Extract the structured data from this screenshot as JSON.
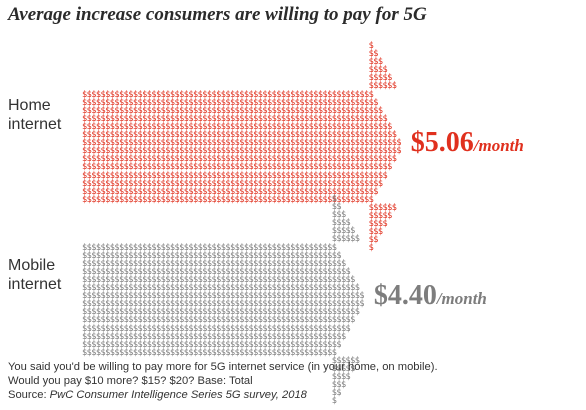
{
  "chart_data": {
    "type": "bar",
    "title": "Average increase consumers are willing to pay for 5G",
    "categories": [
      "Home internet",
      "Mobile internet"
    ],
    "category_lines": [
      [
        "Home",
        "internet"
      ],
      [
        "Mobile",
        "internet"
      ]
    ],
    "values": [
      5.06,
      4.4
    ],
    "value_labels": [
      "$5.06",
      "$4.40"
    ],
    "value_unit": "/month",
    "xlim": [
      0,
      5.2
    ],
    "orientation": "horizontal",
    "glyph": "$",
    "colors": [
      "#e0301e",
      "#7d7d7d"
    ],
    "grid": false,
    "legend": "none"
  },
  "footnote": {
    "line1": "You said you'd be willing to pay more for 5G internet service (in your home, on mobile).",
    "line2": "Would you pay $10 more? $15? $20? Base: Total",
    "source_prefix": "Source: ",
    "source": "PwC Consumer Intelligence Series 5G survey, 2018"
  }
}
